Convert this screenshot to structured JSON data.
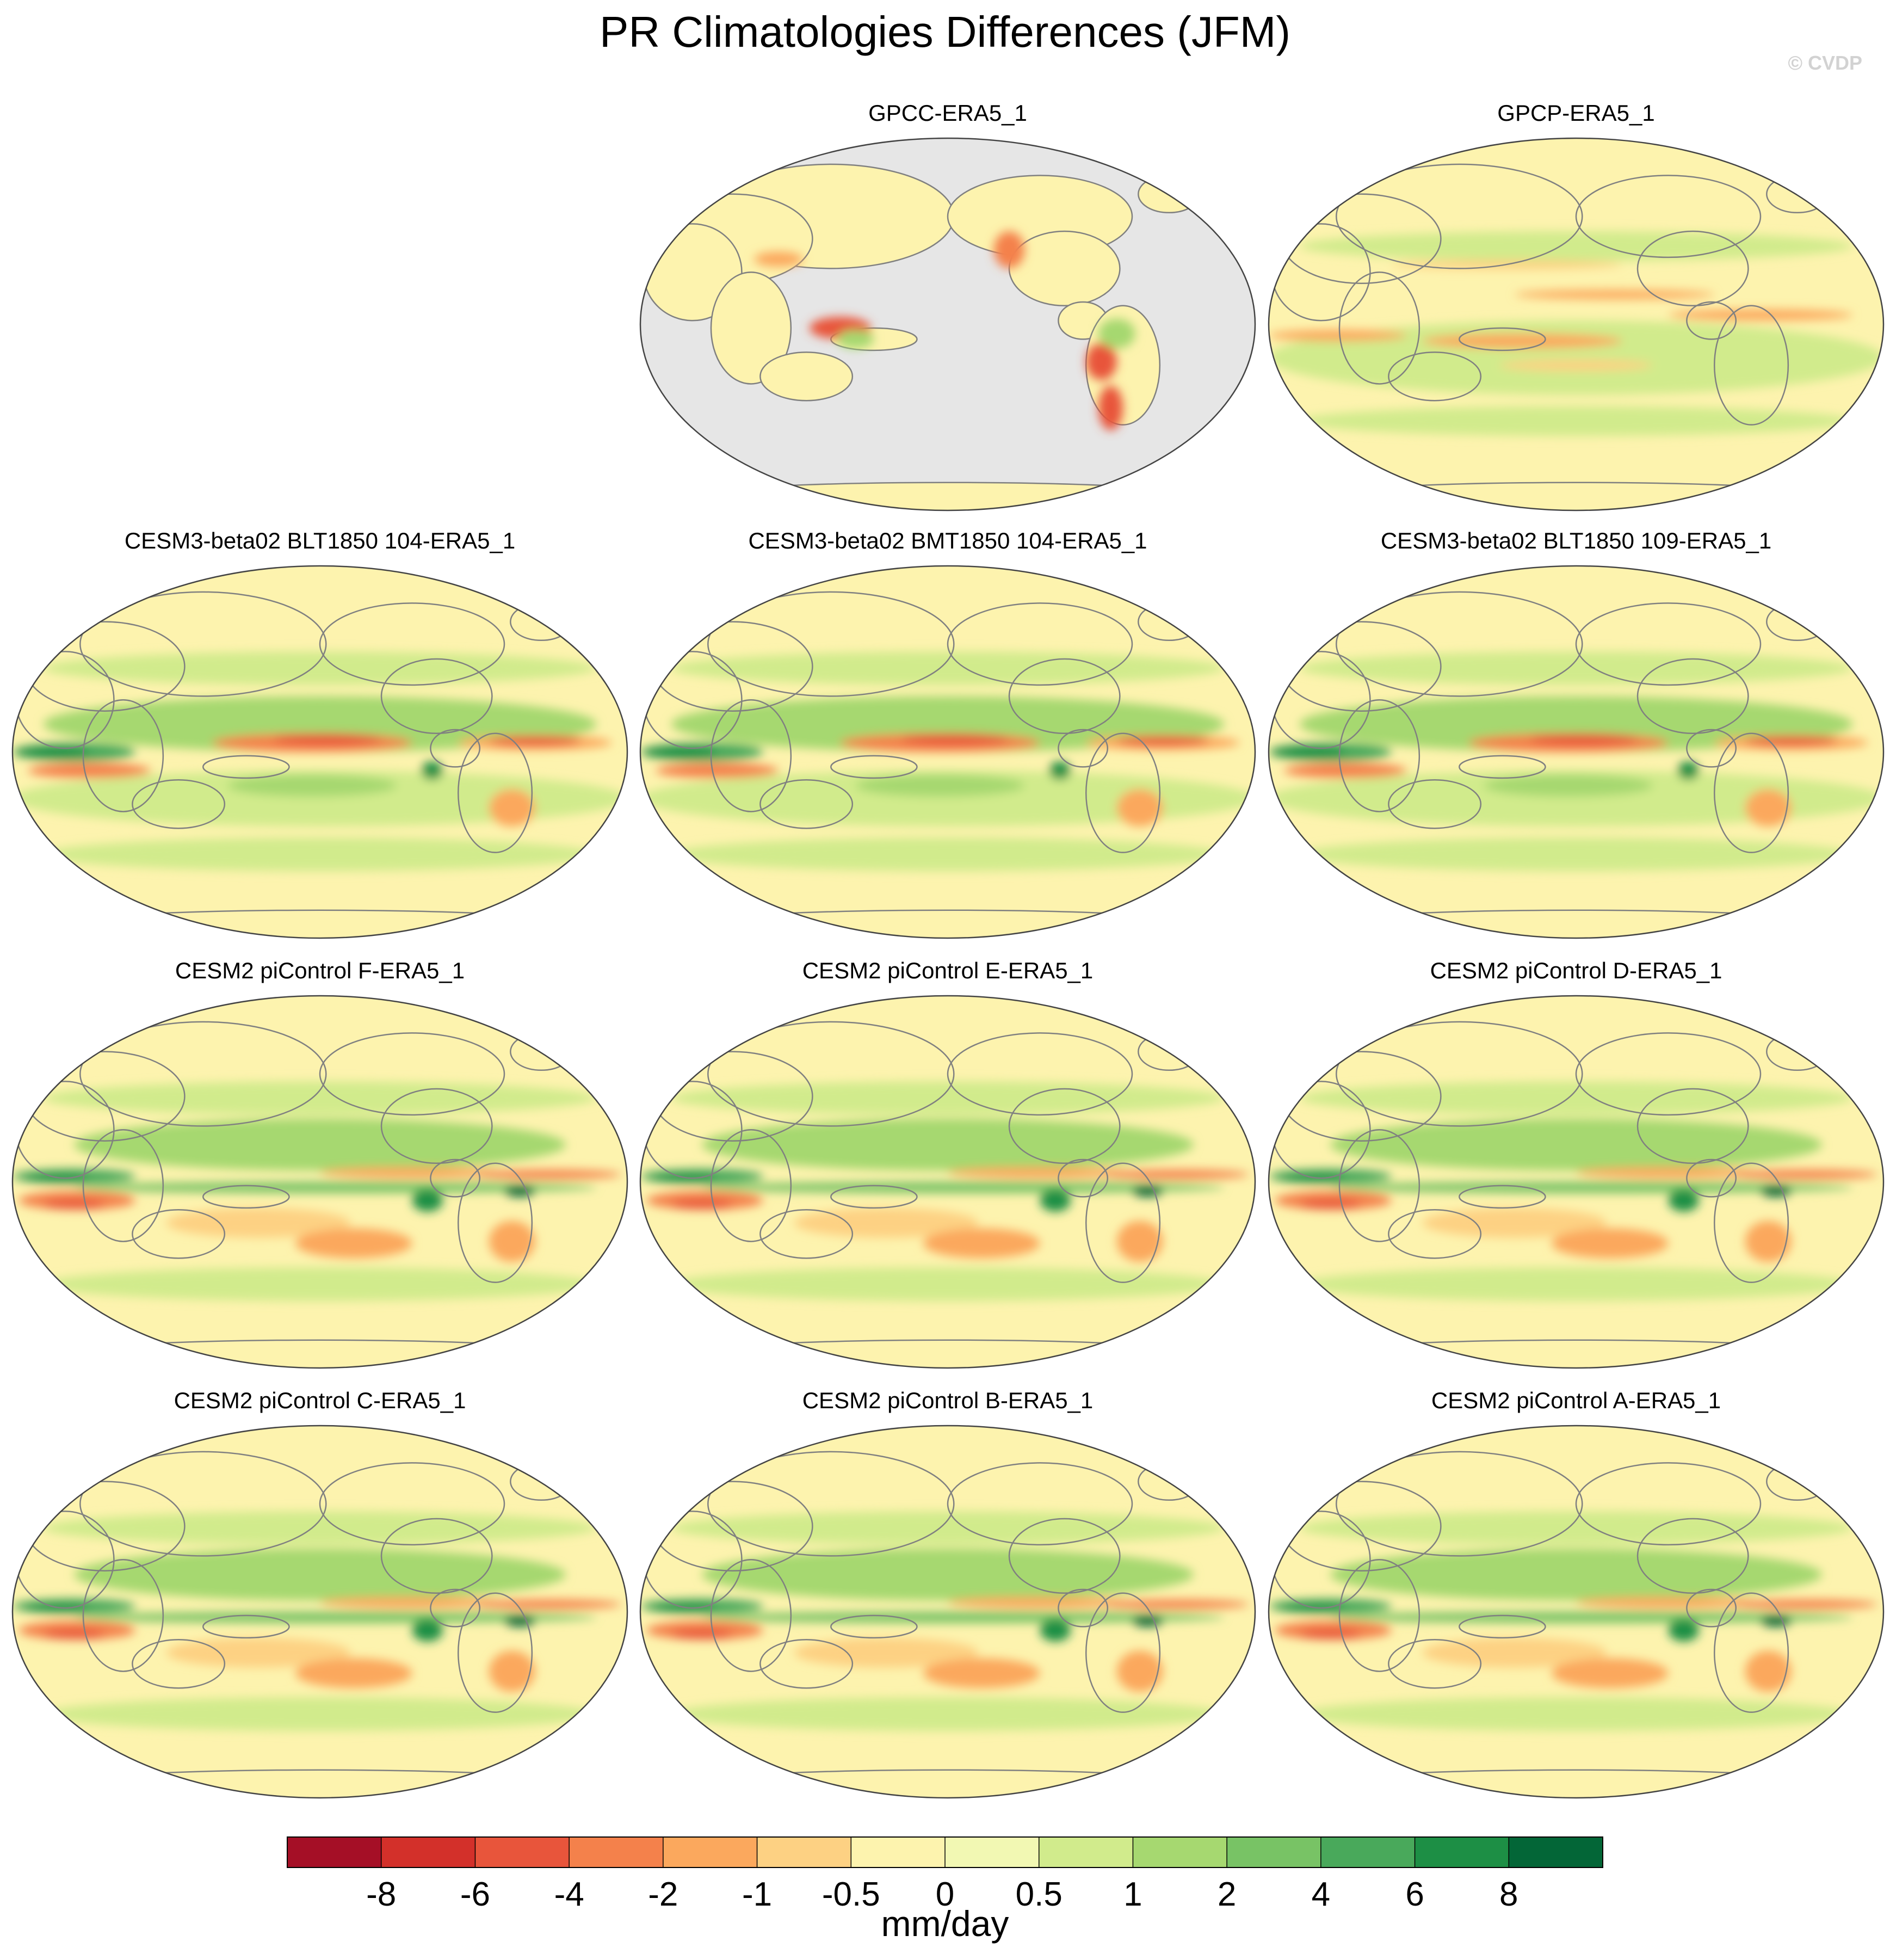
{
  "title": "PR Climatologies Differences (JFM)",
  "watermark": "© CVDP",
  "panels": [
    {
      "label": "GPCC-ERA5_1",
      "style": "land"
    },
    {
      "label": "GPCP-ERA5_1",
      "style": "obs"
    },
    {
      "label": "CESM3-beta02 BLT1850 104-ERA5_1",
      "style": "cesm3"
    },
    {
      "label": "CESM3-beta02 BMT1850 104-ERA5_1",
      "style": "cesm3"
    },
    {
      "label": "CESM3-beta02 BLT1850 109-ERA5_1",
      "style": "cesm3"
    },
    {
      "label": "CESM2 piControl F-ERA5_1",
      "style": "cesm2"
    },
    {
      "label": "CESM2 piControl E-ERA5_1",
      "style": "cesm2"
    },
    {
      "label": "CESM2 piControl D-ERA5_1",
      "style": "cesm2"
    },
    {
      "label": "CESM2 piControl C-ERA5_1",
      "style": "cesm2"
    },
    {
      "label": "CESM2 piControl B-ERA5_1",
      "style": "cesm2"
    },
    {
      "label": "CESM2 piControl A-ERA5_1",
      "style": "cesm2"
    }
  ],
  "colorbar": {
    "unit": "mm/day",
    "ticks": [
      "-8",
      "-6",
      "-4",
      "-2",
      "-1",
      "-0.5",
      "0",
      "0.5",
      "1",
      "2",
      "4",
      "6",
      "8"
    ],
    "colors": [
      "#a50f26",
      "#d3302a",
      "#e8553b",
      "#f4814b",
      "#fba85d",
      "#fdd183",
      "#fdf3ae",
      "#f2f8b3",
      "#d1eb8c",
      "#a6d870",
      "#78c365",
      "#49a95b",
      "#1d8f45",
      "#036637"
    ]
  },
  "colors": {
    "land_mask": "#e6e6e6",
    "coastline": "#808080",
    "outline": "#444444"
  }
}
